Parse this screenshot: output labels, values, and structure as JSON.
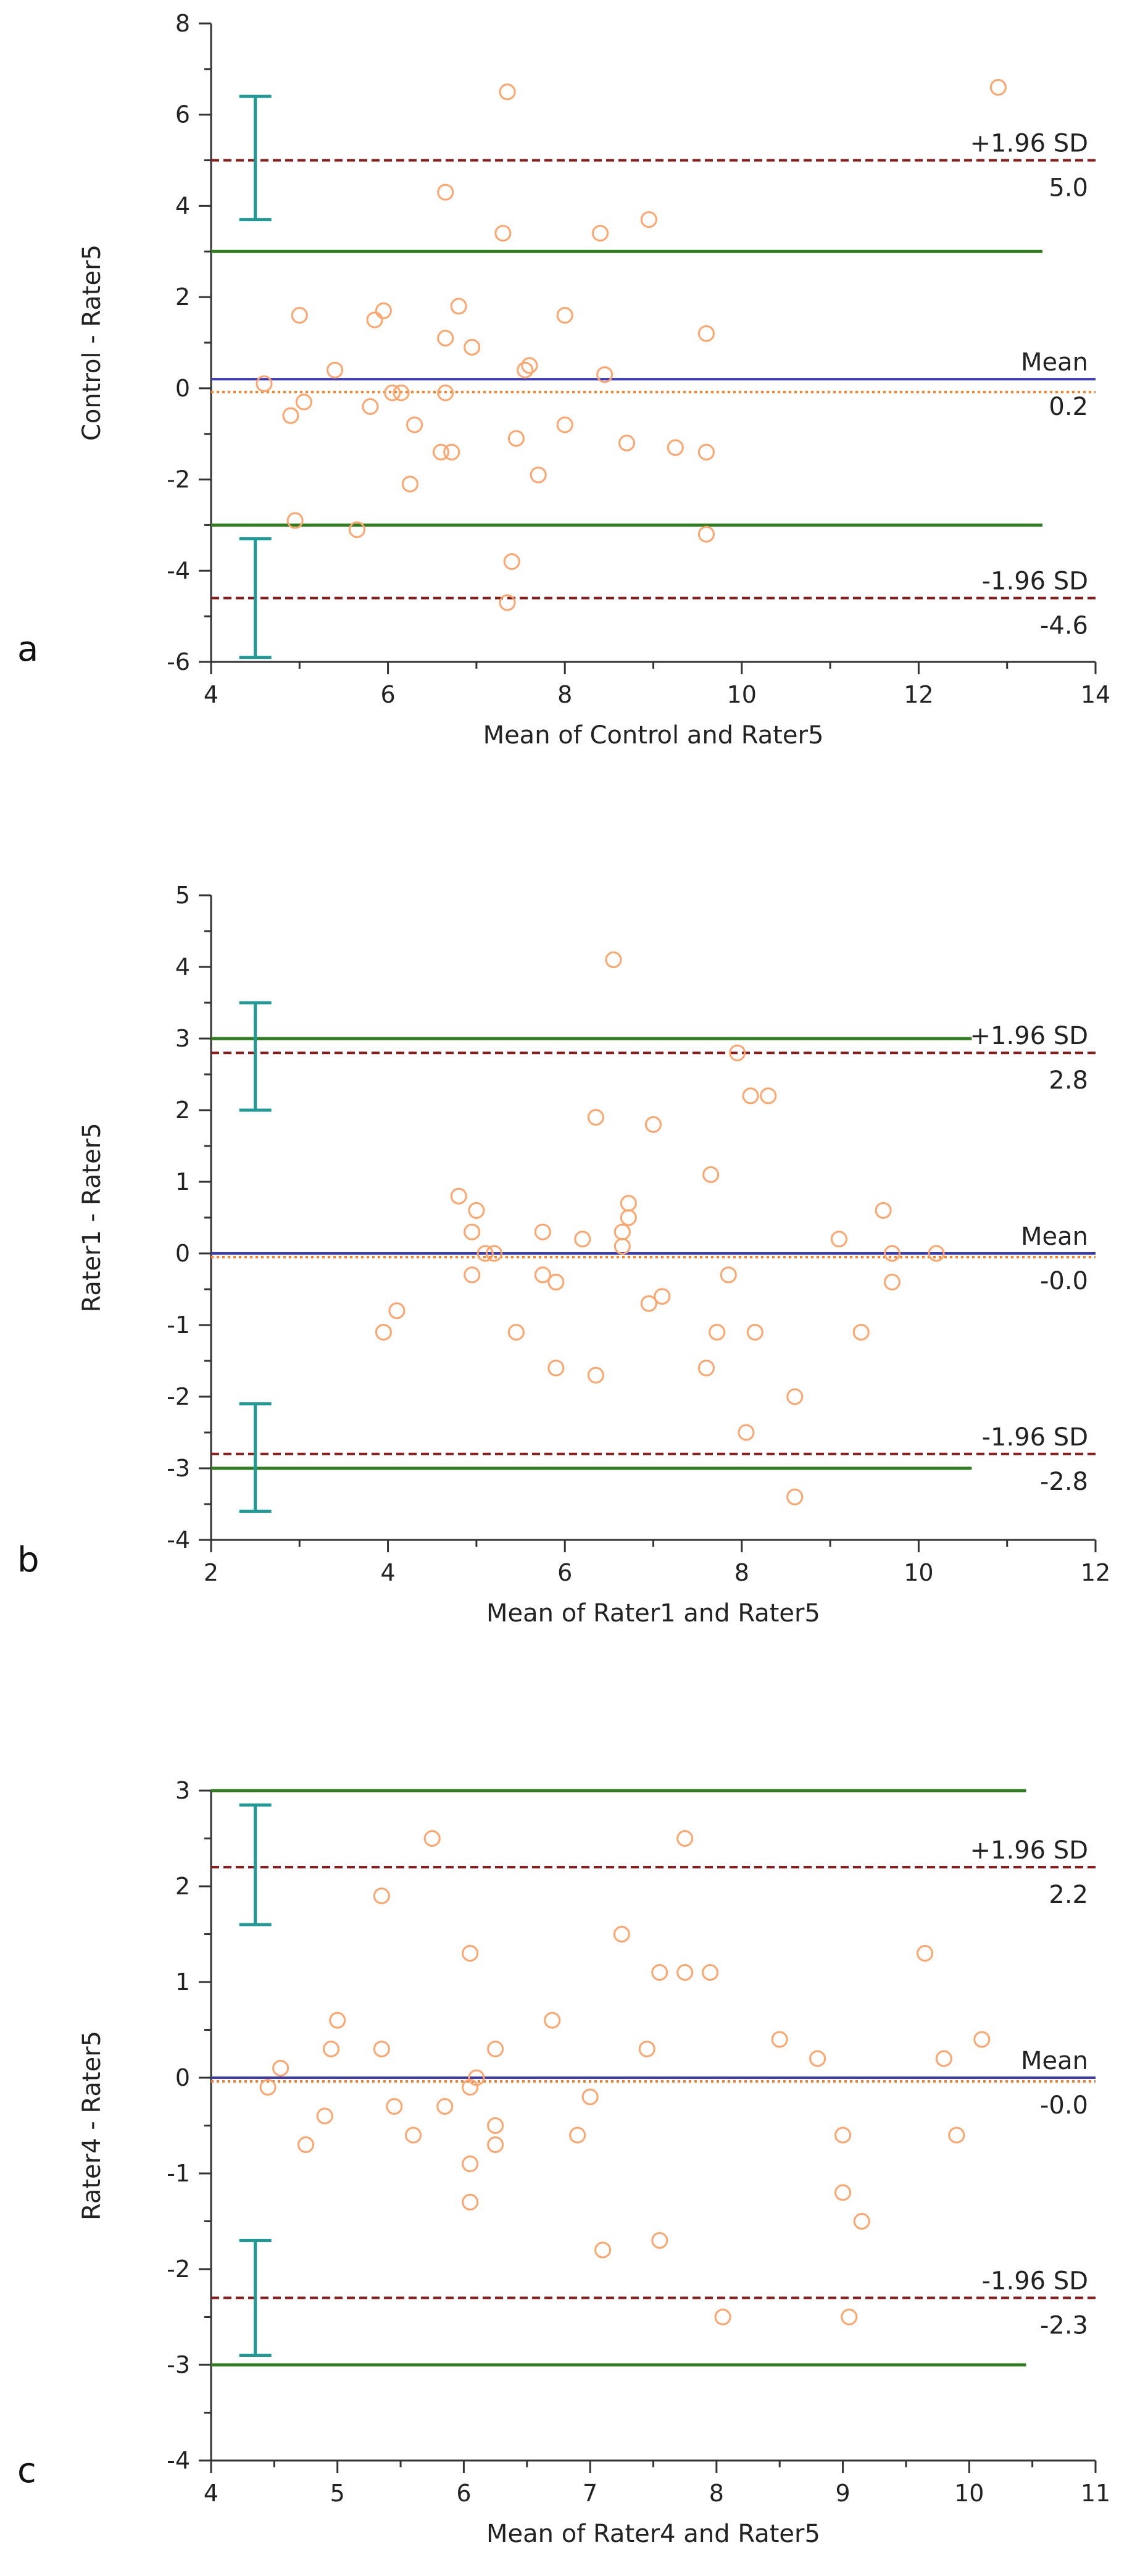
{
  "colors": {
    "axis": "#333333",
    "mean_line": "#3b3bb3",
    "loa_line": "#8b1c1c",
    "reference_line": "#2e7d1f",
    "ci_bar": "#1f9a96",
    "zero_line": "#ff7f27",
    "point": "#ffa46b"
  },
  "chart_data": [
    {
      "type": "scatter",
      "panel": "a",
      "xlabel": "Mean of Control and Rater5",
      "ylabel": "Control - Rater5",
      "xlim": [
        4,
        14
      ],
      "ylim": [
        -6,
        8
      ],
      "xticks": [
        4,
        6,
        8,
        10,
        12,
        14
      ],
      "yticks": [
        -6,
        -4,
        -2,
        0,
        2,
        4,
        6,
        8
      ],
      "line_x_range": [
        4,
        13.4
      ],
      "mean": 0.2,
      "upper_loa": 5.0,
      "lower_loa": -4.6,
      "reference_lines": [
        3,
        -3
      ],
      "ci_x": 4.5,
      "ci_bars": [
        [
          3.7,
          6.4
        ],
        [
          -5.9,
          -3.3
        ]
      ],
      "labels": {
        "upper_sd": "+1.96 SD",
        "upper_value": "5.0",
        "mean": "Mean",
        "mean_value": "0.2",
        "lower_sd": "-1.96 SD",
        "lower_value": "-4.6"
      },
      "points": [
        [
          4.6,
          0.1
        ],
        [
          4.9,
          -0.6
        ],
        [
          4.95,
          -2.9
        ],
        [
          5.0,
          1.6
        ],
        [
          5.05,
          -0.3
        ],
        [
          5.4,
          0.4
        ],
        [
          5.65,
          -3.1
        ],
        [
          5.8,
          -0.4
        ],
        [
          5.85,
          1.5
        ],
        [
          5.95,
          1.7
        ],
        [
          6.05,
          -0.1
        ],
        [
          6.15,
          -0.1
        ],
        [
          6.25,
          -2.1
        ],
        [
          6.3,
          -0.8
        ],
        [
          6.6,
          -1.4
        ],
        [
          6.65,
          1.1
        ],
        [
          6.65,
          -0.1
        ],
        [
          6.65,
          4.3
        ],
        [
          6.72,
          -1.4
        ],
        [
          6.8,
          1.8
        ],
        [
          6.95,
          0.9
        ],
        [
          7.3,
          3.4
        ],
        [
          7.35,
          -4.7
        ],
        [
          7.35,
          6.5
        ],
        [
          7.4,
          -3.8
        ],
        [
          7.45,
          -1.1
        ],
        [
          7.55,
          0.4
        ],
        [
          7.6,
          0.5
        ],
        [
          7.7,
          -1.9
        ],
        [
          8.0,
          -0.8
        ],
        [
          8.0,
          1.6
        ],
        [
          8.4,
          3.4
        ],
        [
          8.45,
          0.3
        ],
        [
          8.7,
          -1.2
        ],
        [
          8.95,
          3.7
        ],
        [
          9.25,
          -1.3
        ],
        [
          9.6,
          -1.4
        ],
        [
          9.6,
          1.2
        ],
        [
          9.6,
          -3.2
        ],
        [
          12.9,
          6.6
        ]
      ]
    },
    {
      "type": "scatter",
      "panel": "b",
      "xlabel": "Mean of Rater1 and Rater5",
      "ylabel": "Rater1 - Rater5",
      "xlim": [
        2,
        12
      ],
      "ylim": [
        -4,
        5
      ],
      "xticks": [
        2,
        4,
        6,
        8,
        10,
        12
      ],
      "yticks": [
        -4,
        -3,
        -2,
        -1,
        0,
        1,
        2,
        3,
        4,
        5
      ],
      "line_x_range": [
        2,
        10.6
      ],
      "mean": -0.0,
      "upper_loa": 2.8,
      "lower_loa": -2.8,
      "reference_lines": [
        3,
        -3
      ],
      "ci_x": 2.5,
      "ci_bars": [
        [
          2.0,
          3.5
        ],
        [
          -3.6,
          -2.1
        ]
      ],
      "labels": {
        "upper_sd": "+1.96 SD",
        "upper_value": "2.8",
        "mean": "Mean",
        "mean_value": "-0.0",
        "lower_sd": "-1.96 SD",
        "lower_value": "-2.8"
      },
      "points": [
        [
          3.95,
          -1.1
        ],
        [
          4.1,
          -0.8
        ],
        [
          4.8,
          0.8
        ],
        [
          4.95,
          0.3
        ],
        [
          4.95,
          -0.3
        ],
        [
          5.0,
          0.6
        ],
        [
          5.1,
          0.0
        ],
        [
          5.2,
          0.0
        ],
        [
          5.45,
          -1.1
        ],
        [
          5.75,
          0.3
        ],
        [
          5.75,
          -0.3
        ],
        [
          5.9,
          -1.6
        ],
        [
          5.9,
          -0.4
        ],
        [
          6.2,
          0.2
        ],
        [
          6.35,
          1.9
        ],
        [
          6.35,
          -1.7
        ],
        [
          6.55,
          4.1
        ],
        [
          6.65,
          0.3
        ],
        [
          6.65,
          0.1
        ],
        [
          6.72,
          0.5
        ],
        [
          6.72,
          0.7
        ],
        [
          6.95,
          -0.7
        ],
        [
          7.0,
          1.8
        ],
        [
          7.1,
          -0.6
        ],
        [
          7.6,
          -1.6
        ],
        [
          7.65,
          1.1
        ],
        [
          7.72,
          -1.1
        ],
        [
          7.85,
          -0.3
        ],
        [
          7.95,
          2.8
        ],
        [
          8.05,
          -2.5
        ],
        [
          8.1,
          2.2
        ],
        [
          8.15,
          -1.1
        ],
        [
          8.3,
          2.2
        ],
        [
          8.6,
          -2.0
        ],
        [
          8.6,
          -3.4
        ],
        [
          9.1,
          0.2
        ],
        [
          9.35,
          -1.1
        ],
        [
          9.6,
          0.6
        ],
        [
          9.7,
          -0.4
        ],
        [
          9.7,
          0.0
        ],
        [
          10.2,
          0.0
        ]
      ]
    },
    {
      "type": "scatter",
      "panel": "c",
      "xlabel": "Mean of Rater4 and Rater5",
      "ylabel": "Rater4 - Rater5",
      "xlim": [
        4,
        11
      ],
      "ylim": [
        -4,
        3
      ],
      "xticks": [
        4,
        5,
        6,
        7,
        8,
        9,
        10,
        11
      ],
      "yticks": [
        -4,
        -3,
        -2,
        -1,
        0,
        1,
        2,
        3
      ],
      "line_x_range": [
        4,
        10.45
      ],
      "mean": -0.0,
      "upper_loa": 2.2,
      "lower_loa": -2.3,
      "reference_lines": [
        3,
        -3
      ],
      "ci_x": 4.35,
      "ci_bars": [
        [
          1.6,
          2.85
        ],
        [
          -2.9,
          -1.7
        ]
      ],
      "labels": {
        "upper_sd": "+1.96 SD",
        "upper_value": "2.2",
        "mean": "Mean",
        "mean_value": "-0.0",
        "lower_sd": "-1.96 SD",
        "lower_value": "-2.3"
      },
      "points": [
        [
          4.45,
          -0.1
        ],
        [
          4.55,
          0.1
        ],
        [
          4.75,
          -0.7
        ],
        [
          4.9,
          -0.4
        ],
        [
          4.95,
          0.3
        ],
        [
          5.0,
          0.6
        ],
        [
          5.35,
          0.3
        ],
        [
          5.35,
          1.9
        ],
        [
          5.45,
          -0.3
        ],
        [
          5.6,
          -0.6
        ],
        [
          5.75,
          2.5
        ],
        [
          5.85,
          -0.3
        ],
        [
          6.05,
          1.3
        ],
        [
          6.05,
          -0.1
        ],
        [
          6.05,
          -0.9
        ],
        [
          6.05,
          -1.3
        ],
        [
          6.1,
          0.0
        ],
        [
          6.25,
          -0.5
        ],
        [
          6.25,
          -0.7
        ],
        [
          6.25,
          0.3
        ],
        [
          6.7,
          0.6
        ],
        [
          6.9,
          -0.6
        ],
        [
          7.0,
          -0.2
        ],
        [
          7.1,
          -1.8
        ],
        [
          7.25,
          1.5
        ],
        [
          7.45,
          0.3
        ],
        [
          7.55,
          1.1
        ],
        [
          7.55,
          -1.7
        ],
        [
          7.75,
          1.1
        ],
        [
          7.75,
          2.5
        ],
        [
          7.95,
          1.1
        ],
        [
          8.05,
          -2.5
        ],
        [
          8.5,
          0.4
        ],
        [
          8.8,
          0.2
        ],
        [
          9.0,
          -0.6
        ],
        [
          9.0,
          -1.2
        ],
        [
          9.05,
          -2.5
        ],
        [
          9.15,
          -1.5
        ],
        [
          9.65,
          1.3
        ],
        [
          9.8,
          0.2
        ],
        [
          9.9,
          -0.6
        ],
        [
          10.1,
          0.4
        ]
      ]
    }
  ]
}
